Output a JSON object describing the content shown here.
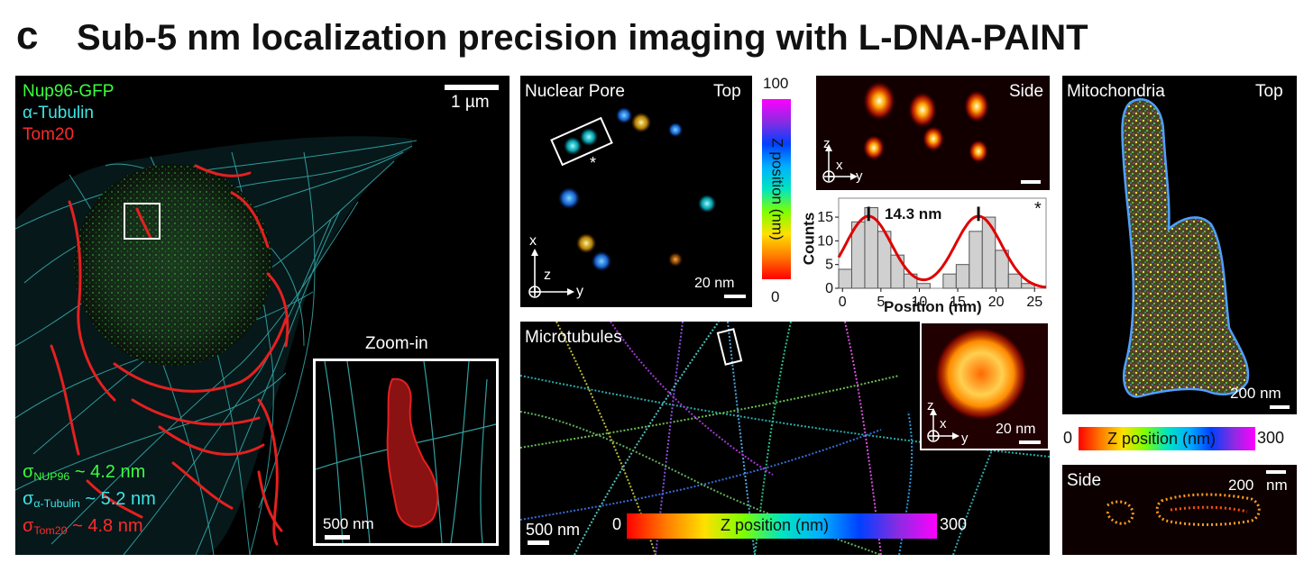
{
  "figure": {
    "panel_letter": "c",
    "title": "Sub-5 nm localization precision imaging with L-DNA-PAINT"
  },
  "cell_panel": {
    "legend": [
      "Nup96-GFP",
      "α-Tubulin",
      "Tom20"
    ],
    "legend_colors": [
      "#3cff3c",
      "#3de6e6",
      "#ff2a2a"
    ],
    "scalebar": "1 µm",
    "zoom_label": "Zoom-in",
    "zoom_scalebar": "500 nm",
    "sigmas": [
      {
        "symbol": "σ",
        "sub": "NUP96",
        "value": " ~ 4.2 nm"
      },
      {
        "symbol": "σ",
        "sub": "α-Tubulin",
        "value": " ~ 5.2 nm"
      },
      {
        "symbol": "σ",
        "sub": "Tom20",
        "value": " ~ 4.8 nm"
      }
    ]
  },
  "nuclear_pore": {
    "label": "Nuclear Pore",
    "view": "Top",
    "scalebar": "20 nm",
    "axes": {
      "x": "x",
      "z": "z",
      "y": "y"
    },
    "asterisk": "*",
    "colorbar": {
      "max": "100",
      "label": "Z position (nm)",
      "min": "0"
    }
  },
  "side_panel": {
    "view": "Side",
    "axes": {
      "z": "z",
      "x": "x",
      "y": "y"
    }
  },
  "histogram": {
    "annotation": "14.3 nm",
    "asterisk": "*",
    "chart_data": {
      "type": "bar",
      "xlabel": "Position (nm)",
      "ylabel": "Counts",
      "xlim": [
        -0.5,
        26.5
      ],
      "ylim": [
        0,
        19
      ],
      "xticks": [
        "0",
        "5",
        "10",
        "15",
        "20",
        "25"
      ],
      "yticks": [
        "0",
        "5",
        "10",
        "15"
      ],
      "bin_width": 1.7,
      "bins": [
        -0.5,
        1.2,
        2.9,
        4.6,
        6.3,
        8.0,
        9.7,
        11.4,
        13.1,
        14.8,
        16.5,
        18.2,
        19.9,
        21.6,
        23.3,
        25.0
      ],
      "counts": [
        4,
        14,
        17,
        12,
        7,
        3,
        1,
        0,
        3,
        5,
        12,
        15,
        8,
        3,
        1,
        0
      ],
      "fit_peaks": [
        3.4,
        17.7
      ],
      "peak_separation_nm": 14.3
    }
  },
  "mito_panel": {
    "label": "Mitochondria",
    "view": "Top",
    "scalebar": "200 nm",
    "colorbar": {
      "min": "0",
      "label": "Z position (nm)",
      "max": "300"
    },
    "side_label": "Side",
    "side_scalebar_value": "200",
    "side_scalebar_unit": "nm"
  },
  "microtubules": {
    "label": "Microtubules",
    "scalebar": "500 nm",
    "colorbar": {
      "min": "0",
      "label": "Z position (nm)",
      "max": "300"
    },
    "inset_scalebar": "20 nm",
    "inset_axes": {
      "z": "z",
      "x": "x",
      "y": "y"
    }
  }
}
